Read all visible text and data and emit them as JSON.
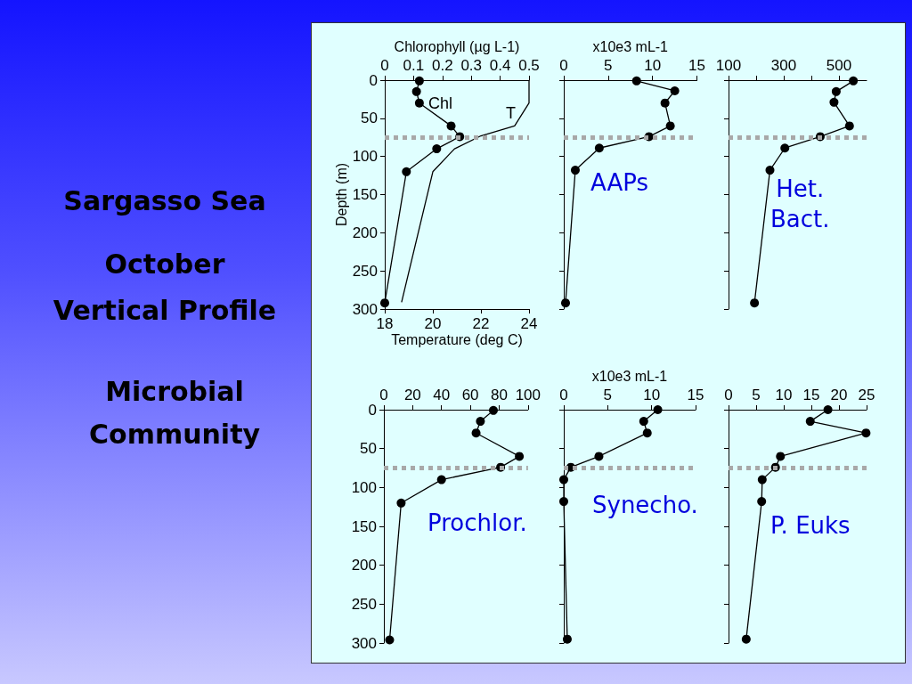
{
  "chart_data": [
    {
      "type": "line",
      "title": "Sargasso Sea",
      "subtitle": "October\nVertical Profile",
      "annotations": [
        "Microbial\nCommunity"
      ],
      "xlabel": "Temperature (deg C)",
      "x2label": "Chlorophyll (µg L-1)",
      "ylabel": "Depth (m)",
      "xlim": [
        18,
        24
      ],
      "xticks": [
        18,
        20,
        22,
        24
      ],
      "x2lim": [
        0,
        0.5
      ],
      "x2ticks": [
        0,
        0.1,
        0.2,
        0.3,
        0.4,
        0.5
      ],
      "ylim": [
        300,
        0
      ],
      "yticks": [
        0,
        50,
        100,
        150,
        200,
        250,
        300
      ],
      "marker": "circle",
      "series": [
        {
          "name": "Chl",
          "color": "#000000",
          "axis": "x2",
          "x": [
            0.12,
            0.11,
            0.12,
            0.23,
            0.26,
            0.18,
            0.075,
            0
          ],
          "values": [
            1,
            15,
            30,
            60,
            74,
            90,
            120,
            292
          ]
        },
        {
          "name": "T",
          "color": "#000000",
          "marker": "none",
          "x": [
            24,
            24,
            23.4,
            22,
            20.9,
            20,
            18.7
          ],
          "values": [
            0,
            30,
            60,
            73,
            90,
            120,
            291
          ]
        }
      ],
      "ref_lines": [
        {
          "axis": "y",
          "value": 75,
          "color": "#a8a8a8",
          "line_style": "dotted"
        }
      ]
    },
    {
      "type": "line",
      "annotations": [
        "AAPs"
      ],
      "xlabel": "x10e3 mL-1",
      "xlim": [
        0,
        15
      ],
      "xticks": [
        0,
        5,
        10,
        15
      ],
      "ylim": [
        300,
        0
      ],
      "yticks": [
        0,
        50,
        100,
        150,
        200,
        250,
        300
      ],
      "tick_labels": "x",
      "marker": "circle",
      "series": [
        {
          "color": "#000000",
          "x": [
            8.2,
            12.5,
            11.4,
            12,
            9.6,
            4,
            1.3,
            0.2
          ],
          "values": [
            1,
            14,
            30,
            60,
            74,
            89,
            118,
            292
          ]
        }
      ],
      "ref_lines": [
        {
          "axis": "y",
          "value": 75,
          "color": "#a8a8a8",
          "line_style": "dotted"
        }
      ]
    },
    {
      "type": "line",
      "annotations": [
        "Het.\nBact."
      ],
      "xlim": [
        100,
        600
      ],
      "xticks": [
        100,
        {
          "value": 200,
          "label": null
        },
        300,
        {
          "value": 400,
          "label": null
        },
        500
      ],
      "ylim": [
        300,
        0
      ],
      "yticks": [
        0,
        50,
        100,
        150,
        200,
        250,
        300
      ],
      "tick_labels": "x",
      "marker": "circle",
      "series": [
        {
          "color": "#000000",
          "x": [
            552,
            490,
            482,
            538,
            432,
            304,
            250,
            194
          ],
          "values": [
            1,
            15,
            29,
            60,
            74,
            89,
            118,
            292
          ]
        }
      ],
      "ref_lines": [
        {
          "axis": "y",
          "value": 75,
          "color": "#a8a8a8",
          "line_style": "dotted"
        }
      ]
    },
    {
      "type": "line",
      "annotations": [
        "Prochlor."
      ],
      "xlim": [
        0,
        100
      ],
      "xticks": [
        0,
        20,
        40,
        60,
        80,
        100
      ],
      "ylim": [
        300,
        0
      ],
      "yticks": [
        0,
        50,
        100,
        150,
        200,
        250,
        300
      ],
      "marker": "circle",
      "series": [
        {
          "color": "#000000",
          "x": [
            76,
            67,
            64,
            94,
            81,
            40,
            12,
            4
          ],
          "values": [
            1,
            15,
            30,
            60,
            74,
            90,
            120,
            296
          ]
        }
      ],
      "ref_lines": [
        {
          "axis": "y",
          "value": 75,
          "color": "#a8a8a8",
          "line_style": "dotted"
        }
      ]
    },
    {
      "type": "line",
      "annotations": [
        "Synecho."
      ],
      "xlabel": "x10e3 mL-1",
      "xlim": [
        0,
        15
      ],
      "xticks": [
        0,
        5,
        10,
        15
      ],
      "ylim": [
        300,
        0
      ],
      "yticks": [
        0,
        50,
        100,
        150,
        200,
        250,
        300
      ],
      "tick_labels": "x",
      "marker": "circle",
      "series": [
        {
          "color": "#000000",
          "x": [
            10.7,
            9.1,
            9.5,
            4,
            0.8,
            0,
            0,
            0.4
          ],
          "values": [
            0,
            15,
            30,
            60,
            74,
            90,
            118,
            295
          ]
        }
      ],
      "ref_lines": [
        {
          "axis": "y",
          "value": 75,
          "color": "#a8a8a8",
          "line_style": "dotted"
        }
      ]
    },
    {
      "type": "line",
      "annotations": [
        "P. Euks"
      ],
      "xlim": [
        0,
        25
      ],
      "xticks": [
        0,
        5,
        10,
        15,
        20,
        25
      ],
      "ylim": [
        300,
        0
      ],
      "yticks": [
        0,
        50,
        100,
        150,
        200,
        250,
        300
      ],
      "tick_labels": "x",
      "marker": "circle",
      "series": [
        {
          "color": "#000000",
          "x": [
            18,
            14.8,
            24.9,
            9.4,
            8.5,
            6.1,
            6,
            3.2
          ],
          "values": [
            0,
            15,
            30,
            60,
            74,
            90,
            118,
            295
          ]
        }
      ],
      "ref_lines": [
        {
          "axis": "y",
          "value": 75,
          "color": "#a8a8a8",
          "line_style": "dotted"
        }
      ]
    }
  ]
}
